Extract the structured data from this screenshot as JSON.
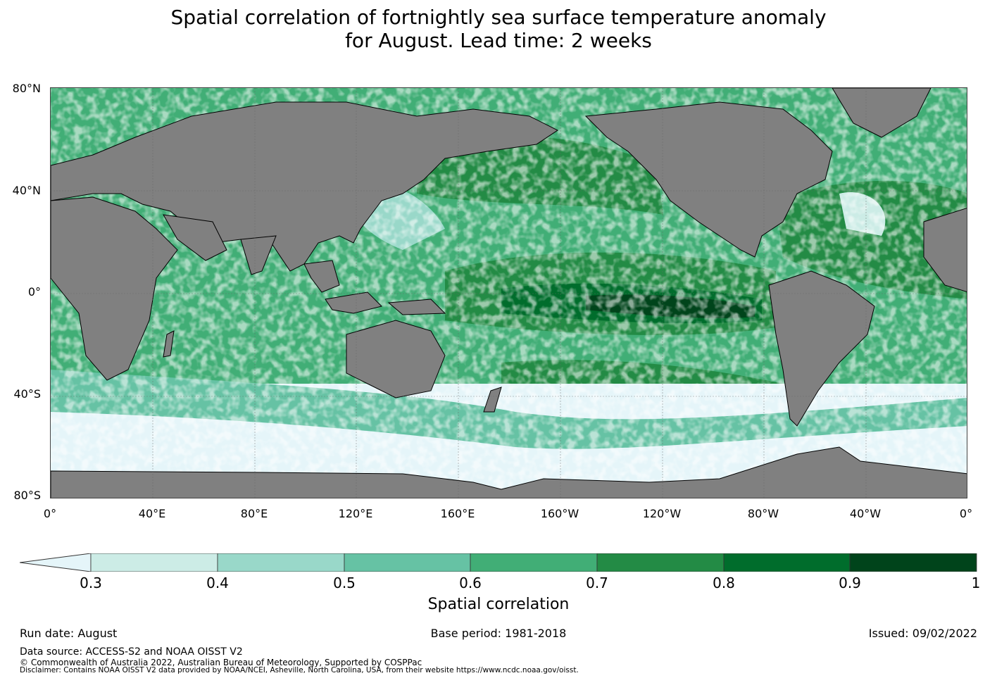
{
  "title": {
    "line1": "Spatial correlation of fortnightly sea surface temperature anomaly",
    "line2": "for August. Lead time: 2 weeks"
  },
  "map": {
    "lat_labels": [
      "80°N",
      "40°N",
      "0°",
      "40°S",
      "80°S"
    ],
    "lon_labels": [
      "0°",
      "40°E",
      "80°E",
      "120°E",
      "160°E",
      "160°W",
      "120°W",
      "80°W",
      "40°W",
      "0°"
    ],
    "land_color": "#808080",
    "ocean_low_color": "#e5f5f9"
  },
  "colorbar": {
    "title": "Spatial correlation",
    "ticks": [
      "0.3",
      "0.4",
      "0.5",
      "0.6",
      "0.7",
      "0.8",
      "0.9",
      "1"
    ],
    "colors": [
      "#e5f5f9",
      "#ccece6",
      "#99d8c9",
      "#66c2a4",
      "#41ae76",
      "#238b45",
      "#006d2c",
      "#00441b"
    ]
  },
  "footer": {
    "run_date": "Run date: August",
    "base_period": "Base period: 1981-2018",
    "issued": "Issued: 09/02/2022",
    "data_source": "Data source: ACCESS-S2 and NOAA OISST V2",
    "copyright": "© Commonwealth of Australia 2022, Australian Bureau of Meteorology, Supported by COSPPac",
    "disclaimer": "Disclaimer: Contains NOAA OISST V2 data provided by NOAA/NCEI, Asheville, North Carolina, USA, from their website https://www.ncdc.noaa.gov/oisst."
  }
}
